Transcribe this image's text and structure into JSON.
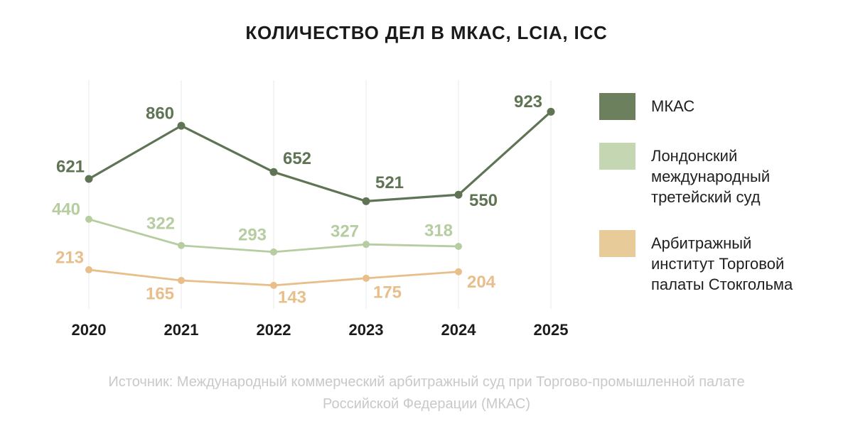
{
  "title": "КОЛИЧЕСТВО ДЕЛ В МКАС, LCIA, ICC",
  "source": {
    "line1": "Источник: Международный коммерческий арбитражный суд при Торгово-промышленной палате",
    "line2": "Российской Федерации (МКАС)"
  },
  "colors": {
    "background": "#FFFFFF",
    "title_text": "#1A1A1A",
    "axis_text": "#1C1C1C",
    "gridline": "#ECECEC",
    "source_text": "#C9C9C9"
  },
  "legend": {
    "items": [
      {
        "label": "МКАС",
        "swatch_color": "#6D805E"
      },
      {
        "label": "Лондонский международный третейский суд",
        "swatch_color": "#C5D6B2"
      },
      {
        "label": "Арбитражный институт Торговой палаты Стокгольма",
        "swatch_color": "#E7CC9A"
      }
    ]
  },
  "chart_data": {
    "type": "line",
    "title": "КОЛИЧЕСТВО ДЕЛ В МКАС, LCIA, ICC",
    "categories": [
      "2020",
      "2021",
      "2022",
      "2023",
      "2024",
      "2025"
    ],
    "series": [
      {
        "name": "МКАС",
        "color": "#5F7454",
        "values": [
          621,
          860,
          652,
          521,
          550,
          923
        ]
      },
      {
        "name": "Лондонский международный третейский суд",
        "color": "#B5CDA0",
        "values": [
          440,
          322,
          293,
          327,
          318
        ]
      },
      {
        "name": "Арбитражный институт Торговой палаты Стокгольма",
        "color": "#E8BE8B",
        "values": [
          213,
          165,
          143,
          175,
          204
        ]
      }
    ],
    "xlabel": "",
    "ylabel": "",
    "ylim": [
      40,
      1070
    ],
    "grid": "vertical",
    "legend_position": "right",
    "value_labels": true
  }
}
